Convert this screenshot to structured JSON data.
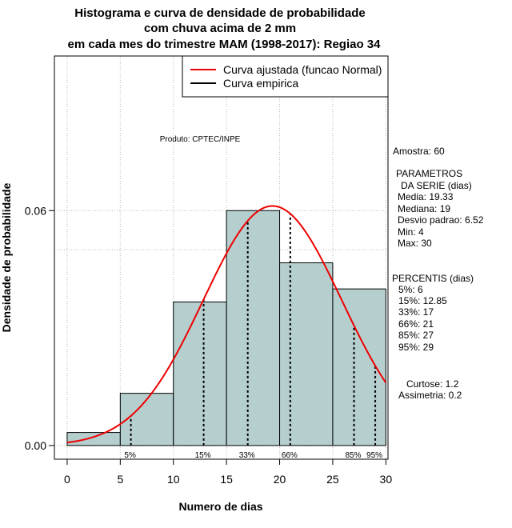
{
  "chart_data": {
    "type": "bar",
    "title_lines": [
      "Histograma e curva de densidade de probabilidade",
      "com chuva acima de 2 mm",
      "em cada mes do trimestre MAM (1998-2017): Regiao 34"
    ],
    "xlabel": "Numero de dias",
    "ylabel": "Densidade de probabilidade",
    "xlim": [
      -1.2,
      30.2
    ],
    "ylim": [
      -0.0035,
      0.0995
    ],
    "x_ticks": [
      "0",
      "5",
      "10",
      "15",
      "20",
      "25",
      "30"
    ],
    "y_ticks": [
      "0.00",
      "0.06"
    ],
    "bins": [
      {
        "from": 0,
        "to": 5,
        "density": 0.00333
      },
      {
        "from": 5,
        "to": 10,
        "density": 0.01333
      },
      {
        "from": 10,
        "to": 15,
        "density": 0.03667
      },
      {
        "from": 15,
        "to": 20,
        "density": 0.06
      },
      {
        "from": 20,
        "to": 25,
        "density": 0.04667
      },
      {
        "from": 25,
        "to": 30,
        "density": 0.04
      }
    ],
    "normal_fit": {
      "mean": 19.33,
      "sd": 6.52,
      "from": 0,
      "to": 30
    },
    "percentile_markers": [
      {
        "x": 6,
        "label": "5%"
      },
      {
        "x": 12.85,
        "label": "15%"
      },
      {
        "x": 17,
        "label": "33%"
      },
      {
        "x": 21,
        "label": "66%"
      },
      {
        "x": 27,
        "label": "85%"
      },
      {
        "x": 29,
        "label": "95%"
      }
    ],
    "grid_lines_y": [
      0.06,
      0.05,
      0.0995
    ],
    "legend": {
      "placement": "top-right",
      "entries": [
        {
          "label": "Curva ajustada (funcao Normal)",
          "color": "#ee0000"
        },
        {
          "label": "Curva empirica",
          "color": "#000000"
        }
      ]
    },
    "product_note": "Produto: CPTEC/INPE",
    "bar_fill": "#b5cece",
    "curve_color": "#ee0000"
  },
  "stats_panel": {
    "sample": "Amostra: 60",
    "params_title_1": "PARAMETROS",
    "params_title_2": "DA SERIE (dias)",
    "params": [
      "Media: 19.33",
      "Mediana: 19",
      "Desvio padrao: 6.52",
      "Min: 4",
      "Max: 30"
    ],
    "perc_title": "PERCENTIS (dias)",
    "percentiles": [
      "5%: 6",
      "15%: 12.85",
      "33%: 17",
      "66%: 21",
      "85%: 27",
      "95%: 29"
    ],
    "kurtosis": "Curtose: 1.2",
    "skewness": "Assimetria: 0.2"
  }
}
